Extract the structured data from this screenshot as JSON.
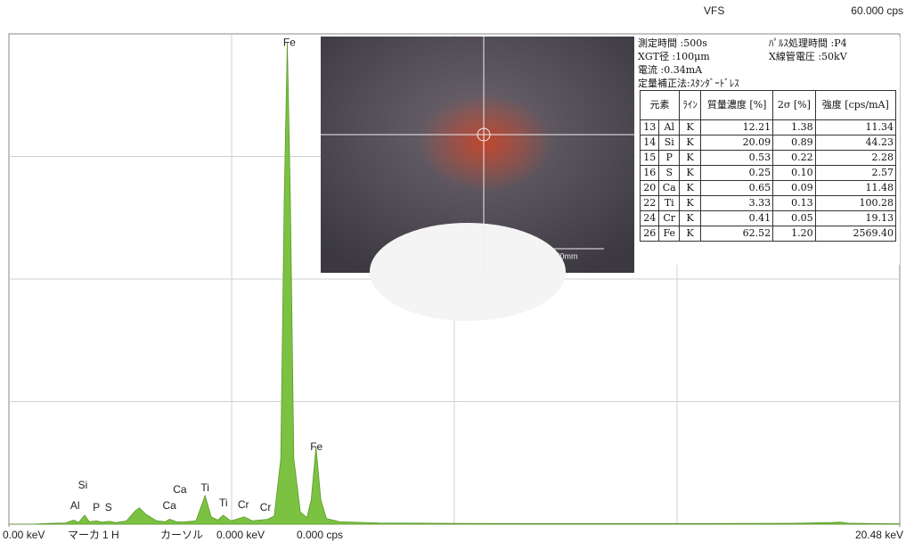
{
  "chart_data": {
    "type": "area",
    "color": "#7cc242",
    "x": [
      0,
      0.5,
      1.0,
      1.3,
      1.49,
      1.6,
      1.74,
      1.85,
      2.01,
      2.15,
      2.31,
      2.45,
      2.7,
      2.9,
      3.0,
      3.15,
      3.4,
      3.6,
      3.69,
      3.85,
      4.0,
      4.3,
      4.51,
      4.65,
      4.8,
      4.93,
      5.1,
      5.41,
      5.6,
      5.95,
      6.1,
      6.25,
      6.33,
      6.4,
      6.47,
      6.55,
      6.7,
      6.85,
      6.95,
      7.06,
      7.17,
      7.3,
      7.6,
      8.5,
      10,
      12,
      14,
      16,
      18,
      18.9,
      19.1,
      19.3,
      20,
      20.48
    ],
    "values": [
      0,
      0,
      100,
      150,
      500,
      200,
      1100,
      300,
      400,
      250,
      350,
      200,
      400,
      1600,
      2000,
      1200,
      400,
      300,
      600,
      300,
      250,
      400,
      3500,
      900,
      500,
      1100,
      400,
      900,
      400,
      600,
      1000,
      8000,
      40000,
      59000,
      40000,
      8000,
      1500,
      800,
      3000,
      9500,
      3000,
      700,
      300,
      150,
      100,
      80,
      80,
      80,
      100,
      200,
      250,
      120,
      60,
      50
    ],
    "xlim": [
      0,
      20.48
    ],
    "ylim": [
      0,
      60000
    ],
    "xticks": [
      {
        "value": 0,
        "label": "0.00 keV"
      },
      {
        "value": 20.48,
        "label": "20.48 keV"
      }
    ],
    "yticks": [
      {
        "value": 60000,
        "label": "60.000 cps"
      }
    ],
    "scale_name": "VFS",
    "annotations": [
      {
        "text": "Fe",
        "x": 6.45,
        "y": 58900
      },
      {
        "text": "Fe",
        "x": 7.07,
        "y": 9380
      },
      {
        "text": "Si",
        "x": 1.7,
        "y": 4690
      },
      {
        "text": "Al",
        "x": 1.52,
        "y": 2180
      },
      {
        "text": "P",
        "x": 2.01,
        "y": 1960
      },
      {
        "text": "S",
        "x": 2.29,
        "y": 1960
      },
      {
        "text": "Ca",
        "x": 3.93,
        "y": 4150
      },
      {
        "text": "Ca",
        "x": 3.69,
        "y": 2180
      },
      {
        "text": "Ti",
        "x": 4.51,
        "y": 4360
      },
      {
        "text": "Ti",
        "x": 4.93,
        "y": 2510
      },
      {
        "text": "Cr",
        "x": 5.39,
        "y": 2290
      },
      {
        "text": "Cr",
        "x": 5.9,
        "y": 1960
      }
    ]
  },
  "status_bar": [
    "マーカ",
    "1 H",
    "カーソル",
    "0.000 keV",
    "0.000 cps"
  ],
  "camera": {
    "scale_label": "0.50mm"
  },
  "info_rows": [
    [
      "測定時間 :500s",
      "ﾊﾟﾙｽ処理時間 :P4"
    ],
    [
      "XGT径 :100μm",
      "X線管電圧 :50kV"
    ],
    [
      "電流 :0.34mA"
    ],
    [
      "定量補正法:ｽﾀﾝﾀﾞｰﾄﾞﾚｽ"
    ]
  ],
  "table": {
    "header": [
      "元素",
      "ﾗｲﾝ",
      "質量濃度 [%]",
      "2σ [%]",
      "強度 [cps/mA]"
    ],
    "rows": [
      [
        "13",
        "Al",
        "K",
        "12.21",
        "1.38",
        "11.34"
      ],
      [
        "14",
        "Si",
        "K",
        "20.09",
        "0.89",
        "44.23"
      ],
      [
        "15",
        "P",
        "K",
        "0.53",
        "0.22",
        "2.28"
      ],
      [
        "16",
        "S",
        "K",
        "0.25",
        "0.10",
        "2.57"
      ],
      [
        "20",
        "Ca",
        "K",
        "0.65",
        "0.09",
        "11.48"
      ],
      [
        "22",
        "Ti",
        "K",
        "3.33",
        "0.13",
        "100.28"
      ],
      [
        "24",
        "Cr",
        "K",
        "0.41",
        "0.05",
        "19.13"
      ],
      [
        "26",
        "Fe",
        "K",
        "62.52",
        "1.20",
        "2569.40"
      ]
    ]
  }
}
